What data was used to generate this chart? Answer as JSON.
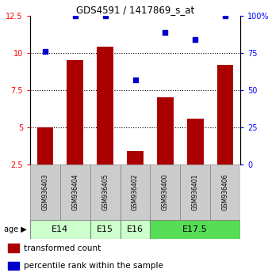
{
  "title": "GDS4591 / 1417869_s_at",
  "samples": [
    "GSM936403",
    "GSM936404",
    "GSM936405",
    "GSM936402",
    "GSM936400",
    "GSM936401",
    "GSM936406"
  ],
  "transformed_count": [
    5.0,
    9.5,
    10.4,
    3.4,
    7.0,
    5.6,
    9.2
  ],
  "percentile_rank": [
    76,
    100,
    100,
    57,
    89,
    84,
    100
  ],
  "age_group_spans": [
    {
      "label": "E14",
      "start": 0,
      "end": 2,
      "color": "#ccffcc"
    },
    {
      "label": "E15",
      "start": 2,
      "end": 3,
      "color": "#ccffcc"
    },
    {
      "label": "E16",
      "start": 3,
      "end": 4,
      "color": "#ccffcc"
    },
    {
      "label": "E17.5",
      "start": 4,
      "end": 7,
      "color": "#55dd55"
    }
  ],
  "ylim_left": [
    2.5,
    12.5
  ],
  "ylim_right": [
    0,
    100
  ],
  "bar_color": "#aa0000",
  "dot_color": "#0000cc",
  "yticks_left": [
    2.5,
    5.0,
    7.5,
    10.0,
    12.5
  ],
  "ytick_labels_left": [
    "2.5",
    "5",
    "7.5",
    "10",
    "12.5"
  ],
  "yticks_right": [
    0,
    25,
    50,
    75,
    100
  ],
  "ytick_labels_right": [
    "0",
    "25",
    "50",
    "75",
    "100%"
  ],
  "dotted_lines": [
    5.0,
    7.5,
    10.0
  ],
  "bar_width": 0.55,
  "sample_box_color": "#cccccc",
  "legend_bar_label": "transformed count",
  "legend_dot_label": "percentile rank within the sample"
}
